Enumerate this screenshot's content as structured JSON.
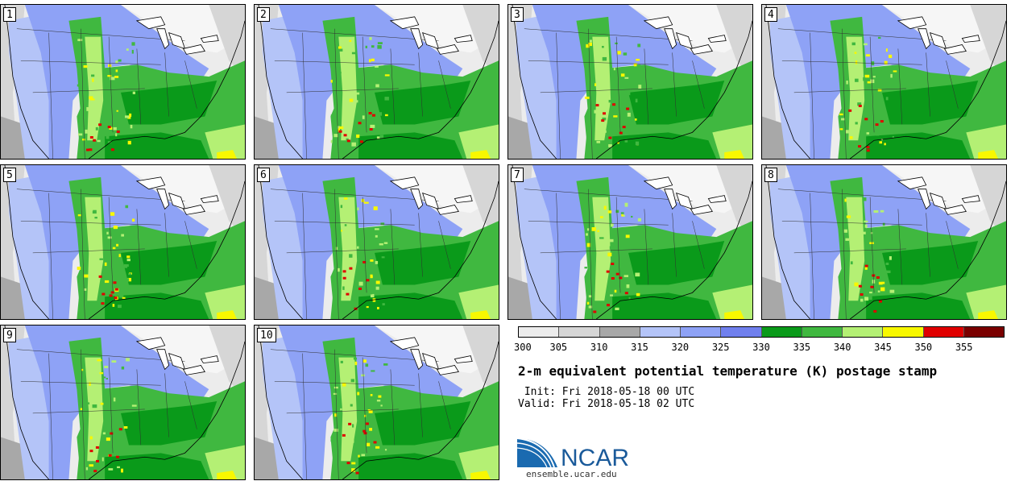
{
  "panels": [
    {
      "number": "1"
    },
    {
      "number": "2"
    },
    {
      "number": "3"
    },
    {
      "number": "4"
    },
    {
      "number": "5"
    },
    {
      "number": "6"
    },
    {
      "number": "7"
    },
    {
      "number": "8"
    },
    {
      "number": "9"
    },
    {
      "number": "10"
    }
  ],
  "colorbar": {
    "ticks": [
      "300",
      "305",
      "310",
      "315",
      "320",
      "325",
      "330",
      "335",
      "340",
      "345",
      "350",
      "355"
    ],
    "colors": [
      "#ececec",
      "#d6d6d6",
      "#a8a8a8",
      "#b4c4f8",
      "#8ea2f6",
      "#7080ee",
      "#0a9a1a",
      "#40b840",
      "#b4f074",
      "#f8f800",
      "#e00000",
      "#7a0000"
    ]
  },
  "title": "2-m equivalent potential temperature (K) postage stamp",
  "init": " Init: Fri 2018-05-18 00 UTC",
  "valid": "Valid: Fri 2018-05-18 02 UTC",
  "logo": {
    "text": "NCAR",
    "color": "#1a5a9a"
  },
  "url": "ensemble.ucar.edu"
}
